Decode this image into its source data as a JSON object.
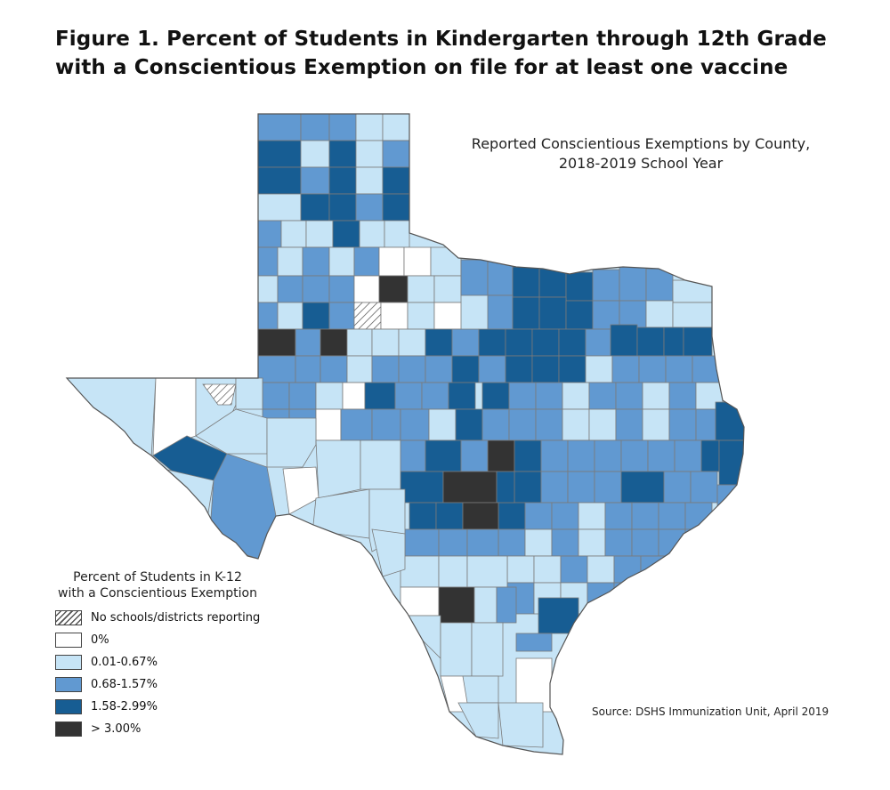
{
  "figure_title_line1": "Figure 1. Percent of Students in Kindergarten through 12th Grade",
  "figure_title_line2": "with a Conscientious Exemption on file for at least one vaccine",
  "map_title_line1": "Reported Conscientious Exemptions by County,",
  "map_title_line2": "2018-2019 School Year",
  "legend": {
    "title_line1": "Percent of Students in K-12",
    "title_line2": "with a Conscientious Exemption",
    "items": [
      {
        "label": "No schools/districts reporting",
        "pattern": "hatched",
        "color": "#ffffff"
      },
      {
        "label": "0%",
        "color": "#ffffff"
      },
      {
        "label": "0.01-0.67%",
        "color": "#c6e4f6"
      },
      {
        "label": "0.68-1.57%",
        "color": "#6199d1"
      },
      {
        "label": "1.58-2.99%",
        "color": "#175d93"
      },
      {
        "label": "> 3.00%",
        "color": "#333333"
      }
    ]
  },
  "source": "Source: DSHS Immunization Unit, April 2019"
}
